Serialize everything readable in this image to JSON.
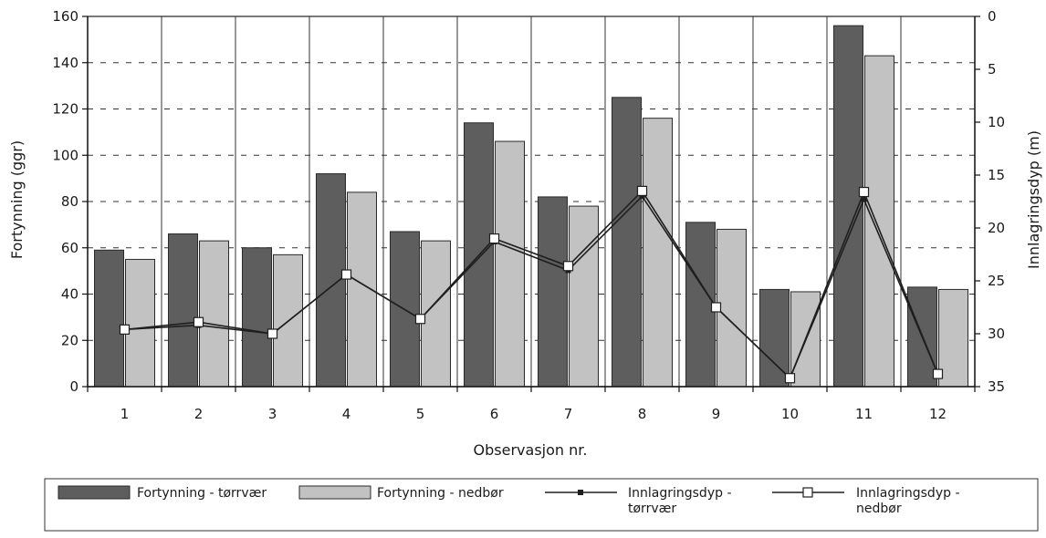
{
  "chart_data": {
    "type": "bar",
    "title": "",
    "xlabel": "Observasjon nr.",
    "ylabel": "Fortynning (ggr)",
    "ylabel_right": "Innlagringsdyp (m)",
    "categories": [
      "1",
      "2",
      "3",
      "4",
      "5",
      "6",
      "7",
      "8",
      "9",
      "10",
      "11",
      "12"
    ],
    "ylim": [
      0,
      160
    ],
    "yticks": [
      "0",
      "20",
      "40",
      "60",
      "80",
      "100",
      "120",
      "140",
      "160"
    ],
    "ylim_right": [
      0,
      35
    ],
    "ylim_right_inverted": true,
    "yticks_right": [
      "0",
      "5",
      "10",
      "15",
      "20",
      "25",
      "30",
      "35"
    ],
    "grid": "dashed horizontal lines, solid vertical category separators",
    "legend_position": "bottom",
    "series": [
      {
        "name": "Fortynning - tørrvær",
        "kind": "bar",
        "axis": "left",
        "color": "#5e5e5e",
        "values": [
          59,
          66,
          60,
          92,
          67,
          114,
          82,
          125,
          71,
          42,
          156,
          43
        ]
      },
      {
        "name": "Fortynning - nedbør",
        "kind": "bar",
        "axis": "left",
        "color": "#c2c2c2",
        "values": [
          55,
          63,
          57,
          84,
          63,
          106,
          78,
          116,
          68,
          41,
          143,
          42
        ]
      },
      {
        "name": "Innlagringsdyp - tørrvær",
        "kind": "line",
        "axis": "right",
        "marker": "filled-square",
        "color": "#1f1f1f",
        "values": [
          29.6,
          29.2,
          30.0,
          24.4,
          28.6,
          21.3,
          24.0,
          17.0,
          27.5,
          34.2,
          17.3,
          33.8
        ]
      },
      {
        "name": "Innlagringsdyp - nedbør",
        "kind": "line",
        "axis": "right",
        "marker": "open-square",
        "color": "#1f1f1f",
        "values": [
          29.6,
          28.9,
          30.0,
          24.4,
          28.6,
          21.0,
          23.6,
          16.5,
          27.5,
          34.2,
          16.6,
          33.8
        ]
      }
    ],
    "legend": [
      {
        "label": "Fortynning - tørrvær",
        "symbol": "bar-dark"
      },
      {
        "label": "Fortynning - nedbør",
        "symbol": "bar-light"
      },
      {
        "label": "Innlagringsdyp -\ntørrvær",
        "symbol": "line-filled-square"
      },
      {
        "label": "Innlagringsdyp -\nnedbør",
        "symbol": "line-open-square"
      }
    ]
  }
}
